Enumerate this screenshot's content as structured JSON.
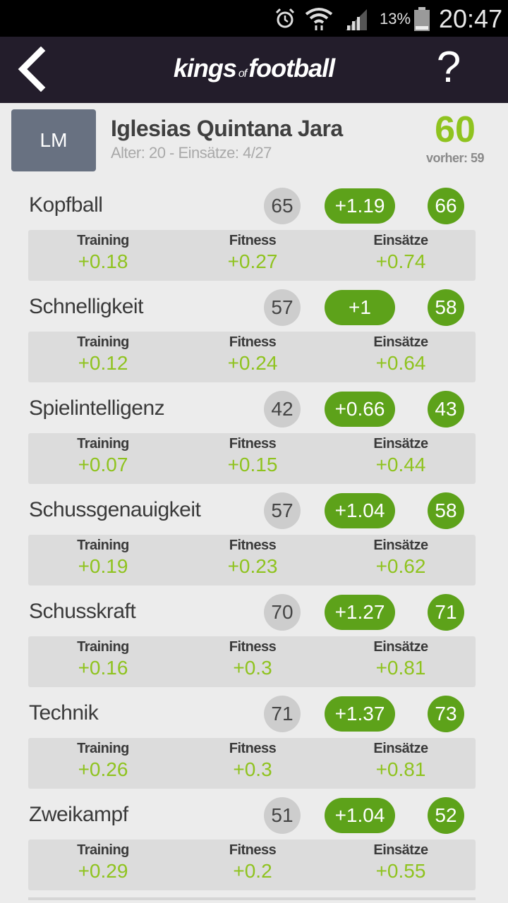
{
  "status_bar": {
    "battery_percent": "13%",
    "time": "20:47",
    "icons": [
      "alarm-icon",
      "wifi-icon",
      "signal-icon",
      "battery-icon"
    ]
  },
  "header": {
    "title_part1": "kings",
    "title_part2": "of",
    "title_part3": "football",
    "help_label": "?"
  },
  "player": {
    "position": "LM",
    "name": "Iglesias Quintana Jara",
    "meta": "Alter: 20 - Einsätze: 4/27",
    "overall": "60",
    "previous": "vorher: 59"
  },
  "colors": {
    "header_bg": "#231d2b",
    "accent_green": "#5da21a",
    "value_green": "#8fc31f",
    "badge_gray": "#687181"
  },
  "skills": [
    {
      "name": "Kopfball",
      "old": "65",
      "delta": "+1.19",
      "new": "66",
      "labels": [
        "Training",
        "Fitness",
        "Einsätze"
      ],
      "values": [
        "+0.18",
        "+0.27",
        "+0.74"
      ]
    },
    {
      "name": "Schnelligkeit",
      "old": "57",
      "delta": "+1",
      "new": "58",
      "labels": [
        "Training",
        "Fitness",
        "Einsätze"
      ],
      "values": [
        "+0.12",
        "+0.24",
        "+0.64"
      ]
    },
    {
      "name": "Spielintelligenz",
      "old": "42",
      "delta": "+0.66",
      "new": "43",
      "labels": [
        "Training",
        "Fitness",
        "Einsätze"
      ],
      "values": [
        "+0.07",
        "+0.15",
        "+0.44"
      ]
    },
    {
      "name": "Schussgenauigkeit",
      "old": "57",
      "delta": "+1.04",
      "new": "58",
      "labels": [
        "Training",
        "Fitness",
        "Einsätze"
      ],
      "values": [
        "+0.19",
        "+0.23",
        "+0.62"
      ]
    },
    {
      "name": "Schusskraft",
      "old": "70",
      "delta": "+1.27",
      "new": "71",
      "labels": [
        "Training",
        "Fitness",
        "Einsätze"
      ],
      "values": [
        "+0.16",
        "+0.3",
        "+0.81"
      ]
    },
    {
      "name": "Technik",
      "old": "71",
      "delta": "+1.37",
      "new": "73",
      "labels": [
        "Training",
        "Fitness",
        "Einsätze"
      ],
      "values": [
        "+0.26",
        "+0.3",
        "+0.81"
      ]
    },
    {
      "name": "Zweikampf",
      "old": "51",
      "delta": "+1.04",
      "new": "52",
      "labels": [
        "Training",
        "Fitness",
        "Einsätze"
      ],
      "values": [
        "+0.29",
        "+0.2",
        "+0.55"
      ]
    }
  ]
}
